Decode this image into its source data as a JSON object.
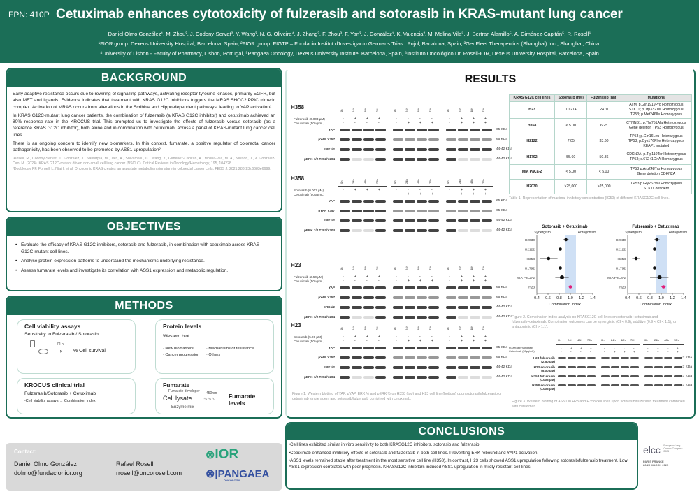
{
  "header": {
    "fpn": "FPN: 410P",
    "title": "Cetuximab enhances cytotoxicity of fulzerasib and sotorasib in KRAS-mutant lung cancer",
    "authors": "Daniel Olmo González¹, M. Zhou², J. Codony-Servat², Y. Wang³, N. G. Oliveira⁴, J. Zhang³, F. Zhou³, F. Yan³, J. González¹, K. Valencia², M. Molina-Vila⁵, J. Bertran Alamillo⁵, A. Giménez-Capitán⁵, R. Rosell⁶",
    "affiliations1": "¹FIOR group. Dexeus University Hospital, Barcelona, Spain, ²FIOR group, FIGTP – Fundacio Institut d'Investigacio Germans Trias i Pujol, Badalona, Spain, ³GenFleet Therapeutics (Shanghai) Inc., Shanghai, China,",
    "affiliations2": "⁴University of Lisbon - Faculty of Pharmacy, Lisbon, Portugal, ⁵Pangaea Oncology, Dexeus University Institute, Barcelona, Spain, ⁶Instituto Oncológico Dr. Rosell-IOR, Dexeus University Hospital, Barcelona, Spain"
  },
  "background": {
    "title": "BACKGROUND",
    "paragraphs": [
      "Early adaptive resistance occurs due to rewiring of signalling pathways, activating receptor tyrosine kinases, primarily EGFR, but also MET and ligands. Evidence indicates that treatment with KRAS G12C inhibitors triggers the MRAS:SHOC2:PPIC trimeric complex. Activation of MRAS occurs from alterations in the Scribble and Hippo-dependent pathways, leading to YAP activation¹.",
      "In KRAS G12C-mutant lung cancer patients, the combination of fulzerasib (a KRAS G12C inhibitor) and cetuximab achieved an 80% response rate in the KROCUS trial. This prompted us to investigate the effects of fulzerasib versus sotorasib (as a reference KRAS G12C inhibitor), both alone and in combination with cetuximab, across a panel of KRAS-mutant lung cancer cell lines.",
      "There is an ongoing concern to identify new biomarkers. In this context, fumarate, a positive regulator of colorectal cancer pathogenicity, has been observed to be promoted by ASS1 upregulation².",
      "¹Rosell, R., Codony-Servat, J., González, J., Santarpia, M., Jain, A., Shivamallu, C., Wang, Y., Giménez-Capitán, A., Molina-Vila, M. A., Nilsson, J., & González-Cao, M. (2024). KRAS G12C-mutant driven non-small cell lung cancer (NSCLC). Critical Reviews in Oncology/Hematology, 195, 104228.",
      "²Doubleday PF, Fornelli L, Ntai I, et al. Oncogenic KRAS creates an aspartate metabolism signature in colorectal cancer cells. FEBS J. 2021;288(23):6683e6699."
    ]
  },
  "objectives": {
    "title": "OBJECTIVES",
    "items": [
      "Evaluate the efficacy of KRAS G12C inhibitors, sotorasib and fulzerasib, in combination with cetuximab across KRAS G12C-mutant cell lines.",
      "Analyse protein expression patterns to understand the mechanisms underlying resistance.",
      "Assess fumarate levels and investigate its correlation with ASS1 expression and metabolic regulation."
    ]
  },
  "methods": {
    "title": "METHODS",
    "viability": {
      "title": "Cell viability assays",
      "subtitle": "Sensitivity to Fulzerasib / Sotorasib",
      "time": "72 h",
      "result": "% Cell survival"
    },
    "protein": {
      "title": "Protein levels",
      "subtitle": "Western blot",
      "items": [
        "· New biomarkers",
        "· Mechanisms of resistance",
        "· Cancer progression",
        "· Others"
      ]
    },
    "krocus": {
      "title": "KROCUS clinical trial",
      "subtitle": "Fulzerasib/Sotorasib + Cetuximab",
      "flow_from": "-Cell viability assays",
      "flow_to": "Combination index"
    },
    "fumarate": {
      "title": "Fumarate",
      "developer": "Fumarate developer",
      "lysate": "Cell lysate",
      "wavelength": "450nm",
      "enzyme": "Enzyme mix",
      "result": "Fumarate levels"
    }
  },
  "contact": {
    "label": "Contact:",
    "people": [
      {
        "name": "Daniel Olmo González",
        "email": "dolmo@fundacionior.org"
      },
      {
        "name": "Rafael Rosell",
        "email": "rrosell@oncorosell.com"
      }
    ],
    "logos": [
      "IOR",
      "PANGAEA",
      "ONCOLOGY"
    ]
  },
  "results": {
    "title": "RESULTS",
    "blots": [
      {
        "cell": "H358",
        "drug": "Fulzerasib (0.003 µM)",
        "cetux": "Cetuximab (50µg/mL)",
        "drug_signs": [
          "-",
          "+",
          "+",
          "+",
          "-",
          "-",
          "-",
          "-",
          "-",
          "+",
          "+",
          "+"
        ],
        "cetux_signs": [
          "-",
          "-",
          "-",
          "-",
          "-",
          "+",
          "+",
          "+",
          "-",
          "+",
          "+",
          "+"
        ]
      },
      {
        "cell": "H358",
        "drug": "Sotorasib (0.003 µM)",
        "cetux": "Cetuximab (50µg/mL)",
        "drug_signs": [
          "-",
          "+",
          "+",
          "+",
          "-",
          "-",
          "-",
          "-",
          "-",
          "+",
          "+",
          "+"
        ],
        "cetux_signs": [
          "-",
          "-",
          "-",
          "-",
          "-",
          "+",
          "+",
          "+",
          "-",
          "+",
          "+",
          "+"
        ]
      },
      {
        "cell": "H23",
        "drug": "Fulzerasib (2.50 µM)",
        "cetux": "Cetuximab (50µg/mL)",
        "drug_signs": [
          "-",
          "+",
          "+",
          "+",
          "-",
          "-",
          "-",
          "-",
          "-",
          "+",
          "+",
          "+"
        ],
        "cetux_signs": [
          "-",
          "-",
          "-",
          "-",
          "-",
          "+",
          "+",
          "+",
          "-",
          "+",
          "+",
          "+"
        ]
      },
      {
        "cell": "H23",
        "drug": "Sotorasib (5.00 µM)",
        "cetux": "Cetuximab (50µg/mL)",
        "drug_signs": [
          "-",
          "+",
          "+",
          "+",
          "-",
          "-",
          "-",
          "-",
          "-",
          "+",
          "+",
          "+"
        ],
        "cetux_signs": [
          "-",
          "-",
          "-",
          "-",
          "-",
          "+",
          "+",
          "+",
          "-",
          "+",
          "+",
          "+"
        ]
      }
    ],
    "timepoints": [
      "0h",
      "24h",
      "48h",
      "72h"
    ],
    "proteins": [
      {
        "name": "YAP",
        "kda": "65 KDa"
      },
      {
        "name": "pYAP Y357",
        "kda": "65 KDa"
      },
      {
        "name": "ERK1/2",
        "kda": "44-42 KDa"
      },
      {
        "name": "pERK 1/2 T202/Y204",
        "kda": "44-42 KDa"
      }
    ],
    "figure1_caption": "Figure 1. Western blotting of YAP, pYAP, ERK ½ and pERK ½ on H358 (top) and H23 cell line (bottom) upon sotorasib/fulzerasib or cetuximab single agent and sotorasib/fulzerasib combined with cetuximab.",
    "table": {
      "headers": [
        "KRAS G12C cell lines",
        "Sotorasib (nM)",
        "Fulzerasib (nM)",
        "Mutations"
      ],
      "rows": [
        [
          "H23",
          "10,214",
          "2470",
          "ATM; p.Gln1919Pro Homozygous\nSTK11; p.Trp332Ter Homozygous\nTP53; p.Met246Ile Homozygous"
        ],
        [
          "H358",
          "< 5.00",
          "6.25",
          "CTNNB1; p.Thr751Ala Heterozygous\nGene deletion TP53 Homozygous"
        ],
        [
          "H2122",
          "7.05",
          "33.60",
          "TP53; p.Gln16Leu Heterozygous\nTP53; p.Cys176Phe Heterozygous\nKEAP1 mutated"
        ],
        [
          "H1792",
          "55.60",
          "50.86",
          "CDKN2A; p.Trp110Ter Heterozygous\nTP53; c.672+1G>A Homozygous"
        ],
        [
          "MIA PaCa-2",
          "< 5.00",
          "< 5.00",
          "TP53 p.Arg248Trp Homozygous\nGene deletion CDKN2A"
        ],
        [
          "H2030",
          ">25,000",
          ">25,000",
          "TP53 p.Gly262Val Homozygous\nSTK11 deficient"
        ]
      ],
      "caption": "Table 1. Representation of maximal inhibitory concentration (IC50) of different KRASG12C cell lines."
    },
    "figure2_caption": "Figure 2. Combination index analysis on KRASG12C cell lines on sotorasib+cetuximab and fulzerasib+cetuximab. Combination outcomes can be synergistic (CI < 0.9), additive (0.9 < CI < 1.1), or antagonistic (CI > 1.1).",
    "ass1": {
      "drug": "Fulzerasib/Sotorasib",
      "cetux": "Cetuximab (50µg/mL)",
      "drug_signs": [
        "-",
        "+",
        "+",
        "+",
        "-",
        "-",
        "-",
        "-",
        "-",
        "+",
        "+",
        "+"
      ],
      "cetux_signs": [
        "-",
        "-",
        "-",
        "-",
        "-",
        "+",
        "+",
        "+",
        "-",
        "+",
        "+",
        "+"
      ],
      "rows": [
        {
          "name": "H23 fulzerasib",
          "conc": "(2.50 µM)",
          "kda": "47 KDa"
        },
        {
          "name": "H23 sotorasib",
          "conc": "(5.00 µM)",
          "kda": "47 KDa"
        },
        {
          "name": "H358 fulzerasib",
          "conc": "(0.003 µM)",
          "kda": "47 KDa"
        },
        {
          "name": "H358 sotorasib",
          "conc": "(0.003 µM)",
          "kda": "47 KDa"
        }
      ]
    },
    "figure3_caption": "Figure 3. Western blotting of ASS1 in H23 and H358 cell lines upon sotorasib/fulzerasib treatment combined with cetuximab."
  },
  "chart_data": [
    {
      "type": "scatter",
      "title": "Sotorasib + Cetuximab",
      "xlabel": "Combination Index",
      "xlim": [
        0.4,
        1.4
      ],
      "xticks": [
        "0.4",
        "0.6",
        "0.8",
        "1.0",
        "1.2",
        "1.4"
      ],
      "region_labels": [
        "Synergism",
        "Antagonism"
      ],
      "additive_band": [
        0.9,
        1.1
      ],
      "categories": [
        "H2030",
        "H2122",
        "H358",
        "H1792",
        "MIA PaCa-2",
        "H23"
      ],
      "values": [
        0.92,
        0.82,
        0.61,
        0.82,
        0.85,
        1.0
      ],
      "err_low": [
        0.87,
        0.7,
        0.45,
        0.78,
        0.73,
        0.97
      ],
      "err_high": [
        0.97,
        0.93,
        0.77,
        0.87,
        0.97,
        1.03
      ],
      "highlight": "H23",
      "highlight_color": "#e0207a"
    },
    {
      "type": "scatter",
      "title": "Fulzerasib + Cetuximab",
      "xlabel": "Combination Index",
      "xlim": [
        0.4,
        1.4
      ],
      "xticks": [
        "0.4",
        "0.6",
        "0.8",
        "1.0",
        "1.2",
        "1.4"
      ],
      "region_labels": [
        "Synergism",
        "Antagonism"
      ],
      "additive_band": [
        0.9,
        1.1
      ],
      "categories": [
        "H2030",
        "H2122",
        "H358",
        "H1792",
        "MIA PaCa-2",
        "H23"
      ],
      "values": [
        0.92,
        0.88,
        0.55,
        0.88,
        0.97,
        1.04
      ],
      "err_low": [
        0.87,
        0.79,
        0.48,
        0.79,
        0.8,
        1.0
      ],
      "err_high": [
        0.97,
        0.97,
        0.62,
        0.97,
        1.13,
        1.08
      ],
      "highlight": "H23",
      "highlight_color": "#e0207a"
    }
  ],
  "conclusions": {
    "title": "CONCLUSIONS",
    "items": [
      "•Cell lines exhibited similar in vitro sensitivity to both KRASG12C inhibitors, sotorasib and fulzerasib.",
      "•Cetuximab enhanced inhibitory effects of sotorasib and fulzerasib in both cell lines. Preventing ERK rebound and YAP1 activation.",
      "•ASS1 levels remained stable after treatment in the most sensitive cell line (H358). In contrast, H23 cells showed ASS1 upregulation following sotorasib/fulzerasib treatment. Low ASS1 expression correlates with poor prognosis. KRASG12C inhibitors induced ASS1 upregulation in mildly resistant cell lines."
    ]
  },
  "congress": {
    "logo": "elcc",
    "name": "European Lung Cancer Congress 2025",
    "place": "PARIS FRANCE",
    "dates": "26-29 MARCH 2025"
  },
  "colors": {
    "brand": "#1b6e57",
    "band": "#cfe0f5",
    "highlight": "#e0207a"
  }
}
